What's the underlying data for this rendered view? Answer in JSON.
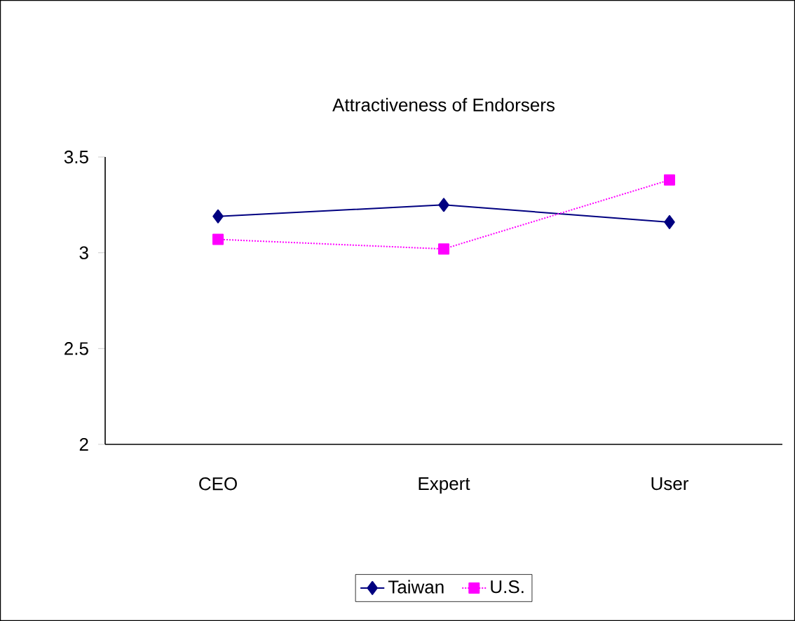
{
  "chart_data": {
    "type": "line",
    "title": "Attractiveness of Endorsers",
    "categories": [
      "CEO",
      "Expert",
      "User"
    ],
    "series": [
      {
        "name": "Taiwan",
        "color": "#000080",
        "values": [
          3.19,
          3.25,
          3.16
        ],
        "marker": "diamond",
        "line_style": "solid"
      },
      {
        "name": "U.S.",
        "color": "#ff00ff",
        "values": [
          3.07,
          3.02,
          3.38
        ],
        "marker": "square",
        "line_style": "dotted"
      }
    ],
    "ylim": [
      2,
      3.5
    ],
    "yticks": [
      2,
      2.5,
      3,
      3.5
    ],
    "grid": false,
    "legend": "bottom"
  }
}
